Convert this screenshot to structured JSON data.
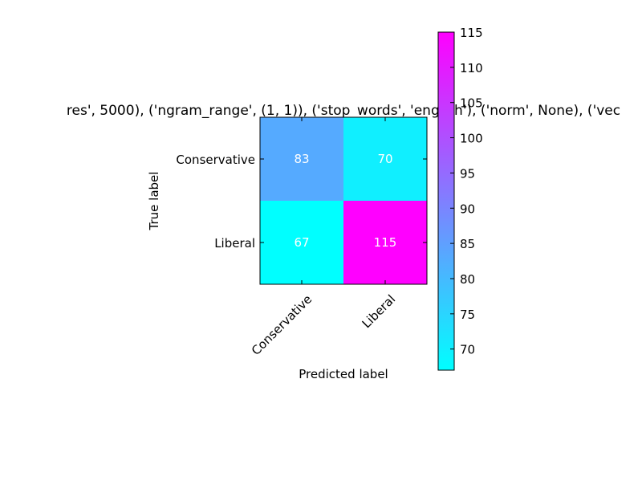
{
  "chart_data": {
    "type": "heatmap",
    "title": "res', 5000), ('ngram_range', (1, 1)), ('stop_words', 'english'), ('norm', None), ('vec",
    "xlabel": "Predicted label",
    "ylabel": "True label",
    "x_categories": [
      "Conservative",
      "Liberal"
    ],
    "y_categories": [
      "Conservative",
      "Liberal"
    ],
    "values": [
      [
        83,
        70
      ],
      [
        67,
        115
      ]
    ],
    "colormap": "cool",
    "color_range": [
      67,
      115
    ],
    "colorbar_ticks": [
      "70",
      "75",
      "80",
      "85",
      "90",
      "95",
      "100",
      "105",
      "110",
      "115"
    ],
    "cell_text_color": "#ffffff"
  }
}
